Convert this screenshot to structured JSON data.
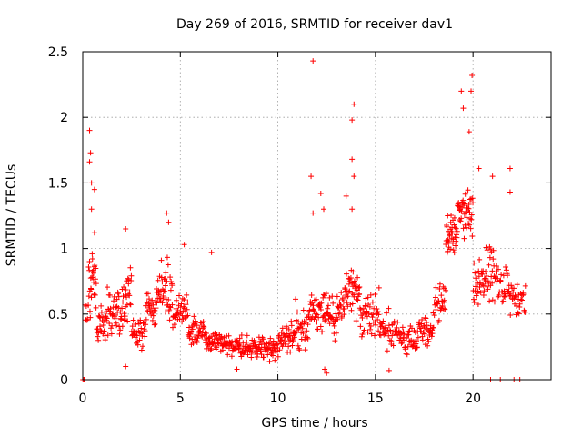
{
  "chart_data": {
    "type": "scatter",
    "title": "Day 269 of 2016, SRMTID for receiver dav1",
    "xlabel": "GPS time / hours",
    "ylabel": "SRMTID / TECUs",
    "xlim": [
      0,
      24
    ],
    "ylim": [
      0,
      2.5
    ],
    "grid": true,
    "legend": "none",
    "marker": "plus",
    "series_color": "#ff0000",
    "x_ticks": [
      {
        "value": 0,
        "label": "0"
      },
      {
        "value": 5,
        "label": "5"
      },
      {
        "value": 10,
        "label": "10"
      },
      {
        "value": 15,
        "label": "15"
      },
      {
        "value": 20,
        "label": "20"
      }
    ],
    "y_ticks": [
      {
        "value": 0,
        "label": "0"
      },
      {
        "value": 0.5,
        "label": "0.5"
      },
      {
        "value": 1,
        "label": "1"
      },
      {
        "value": 1.5,
        "label": "1.5"
      },
      {
        "value": 2,
        "label": "2"
      },
      {
        "value": 2.5,
        "label": "2.5"
      }
    ],
    "series": [
      {
        "name": "SRMTID",
        "segments": [
          {
            "start": 0.0,
            "end": 0.1,
            "mean": 0.0,
            "spread": 0.0,
            "count": 3
          },
          {
            "start": 0.1,
            "end": 0.3,
            "mean": 0.48,
            "spread": 0.18,
            "count": 6
          },
          {
            "start": 0.3,
            "end": 0.7,
            "mean": 0.75,
            "spread": 0.38,
            "count": 28
          },
          {
            "start": 0.7,
            "end": 1.2,
            "mean": 0.4,
            "spread": 0.22,
            "count": 24
          },
          {
            "start": 1.2,
            "end": 2.0,
            "mean": 0.5,
            "spread": 0.25,
            "count": 42
          },
          {
            "start": 2.0,
            "end": 2.5,
            "mean": 0.6,
            "spread": 0.3,
            "count": 28
          },
          {
            "start": 2.5,
            "end": 3.2,
            "mean": 0.35,
            "spread": 0.18,
            "count": 36
          },
          {
            "start": 3.2,
            "end": 3.8,
            "mean": 0.55,
            "spread": 0.22,
            "count": 30
          },
          {
            "start": 3.8,
            "end": 4.6,
            "mean": 0.7,
            "spread": 0.3,
            "count": 44
          },
          {
            "start": 4.6,
            "end": 5.4,
            "mean": 0.5,
            "spread": 0.2,
            "count": 38
          },
          {
            "start": 5.4,
            "end": 6.2,
            "mean": 0.38,
            "spread": 0.15,
            "count": 40
          },
          {
            "start": 6.2,
            "end": 7.0,
            "mean": 0.3,
            "spread": 0.14,
            "count": 40
          },
          {
            "start": 7.0,
            "end": 8.0,
            "mean": 0.27,
            "spread": 0.12,
            "count": 48
          },
          {
            "start": 8.0,
            "end": 9.0,
            "mean": 0.25,
            "spread": 0.12,
            "count": 48
          },
          {
            "start": 9.0,
            "end": 10.0,
            "mean": 0.25,
            "spread": 0.13,
            "count": 48
          },
          {
            "start": 10.0,
            "end": 10.8,
            "mean": 0.3,
            "spread": 0.18,
            "count": 40
          },
          {
            "start": 10.8,
            "end": 11.6,
            "mean": 0.4,
            "spread": 0.25,
            "count": 40
          },
          {
            "start": 11.6,
            "end": 12.4,
            "mean": 0.5,
            "spread": 0.3,
            "count": 40
          },
          {
            "start": 12.4,
            "end": 13.4,
            "mean": 0.5,
            "spread": 0.28,
            "count": 48
          },
          {
            "start": 13.4,
            "end": 14.2,
            "mean": 0.65,
            "spread": 0.32,
            "count": 44
          },
          {
            "start": 14.2,
            "end": 15.2,
            "mean": 0.5,
            "spread": 0.25,
            "count": 46
          },
          {
            "start": 15.2,
            "end": 16.2,
            "mean": 0.38,
            "spread": 0.18,
            "count": 44
          },
          {
            "start": 16.2,
            "end": 17.2,
            "mean": 0.3,
            "spread": 0.14,
            "count": 44
          },
          {
            "start": 17.2,
            "end": 18.0,
            "mean": 0.4,
            "spread": 0.2,
            "count": 38
          },
          {
            "start": 18.0,
            "end": 18.6,
            "mean": 0.6,
            "spread": 0.25,
            "count": 30
          },
          {
            "start": 18.6,
            "end": 19.2,
            "mean": 1.1,
            "spread": 0.25,
            "count": 36
          },
          {
            "start": 19.2,
            "end": 20.0,
            "mean": 1.3,
            "spread": 0.3,
            "count": 44
          },
          {
            "start": 20.0,
            "end": 20.6,
            "mean": 0.75,
            "spread": 0.3,
            "count": 30
          },
          {
            "start": 20.6,
            "end": 21.2,
            "mean": 0.8,
            "spread": 0.35,
            "count": 30
          },
          {
            "start": 21.2,
            "end": 22.0,
            "mean": 0.7,
            "spread": 0.3,
            "count": 34
          },
          {
            "start": 22.0,
            "end": 22.7,
            "mean": 0.6,
            "spread": 0.2,
            "count": 28
          }
        ],
        "points": [
          [
            0.1,
            0.0
          ],
          [
            0.35,
            1.9
          ],
          [
            0.4,
            1.73
          ],
          [
            0.35,
            1.66
          ],
          [
            0.45,
            1.5
          ],
          [
            0.6,
            1.45
          ],
          [
            0.45,
            1.3
          ],
          [
            0.6,
            1.12
          ],
          [
            2.2,
            1.15
          ],
          [
            4.3,
            1.27
          ],
          [
            4.4,
            1.2
          ],
          [
            5.2,
            1.03
          ],
          [
            6.6,
            0.97
          ],
          [
            11.8,
            2.43
          ],
          [
            11.7,
            1.55
          ],
          [
            11.8,
            1.27
          ],
          [
            12.2,
            1.42
          ],
          [
            12.35,
            1.3
          ],
          [
            13.5,
            1.4
          ],
          [
            13.9,
            2.1
          ],
          [
            13.8,
            1.98
          ],
          [
            13.8,
            1.68
          ],
          [
            13.9,
            1.55
          ],
          [
            13.8,
            1.3
          ],
          [
            18.7,
            1.25
          ],
          [
            19.4,
            2.2
          ],
          [
            19.5,
            2.07
          ],
          [
            19.95,
            2.32
          ],
          [
            19.9,
            2.2
          ],
          [
            19.8,
            1.89
          ],
          [
            20.3,
            1.61
          ],
          [
            21.0,
            1.55
          ],
          [
            21.9,
            1.61
          ],
          [
            21.9,
            1.43
          ],
          [
            12.5,
            0.05
          ],
          [
            12.4,
            0.08
          ],
          [
            15.7,
            0.07
          ],
          [
            7.9,
            0.08
          ],
          [
            2.2,
            0.1
          ],
          [
            20.9,
            0.0
          ],
          [
            21.4,
            0.0
          ],
          [
            22.1,
            0.0
          ],
          [
            22.4,
            0.0
          ]
        ]
      }
    ]
  }
}
